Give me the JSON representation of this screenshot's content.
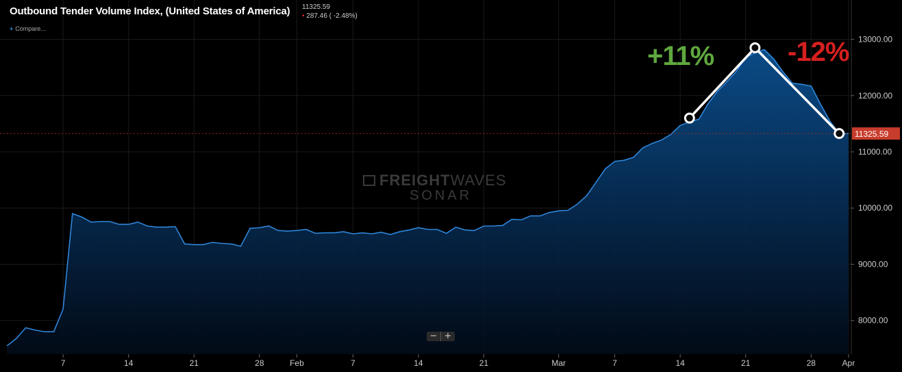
{
  "header": {
    "title": "Outbound Tender Volume Index, (United States of America)",
    "last_value": "11325.59",
    "change": "287.46 ( -2.48%)",
    "compare_label": "Compare..."
  },
  "watermark": {
    "line1_bold": "FREIGHT",
    "line1_light": "WAVES",
    "line2": "SONAR"
  },
  "zoom": {
    "minus": "−",
    "plus": "+"
  },
  "colors": {
    "line": "#2f86d9",
    "fill_top": "#0b4f8e",
    "price_tag": "#c83c2c",
    "up": "#5fa83f",
    "down": "#d61f1f"
  },
  "chart_data": {
    "type": "area",
    "title": "Outbound Tender Volume Index, (United States of America)",
    "ylim": [
      7400,
      13700
    ],
    "yticks": [
      8000,
      9000,
      10000,
      11000,
      12000,
      13000
    ],
    "ytick_labels": [
      "8000.00",
      "9000.00",
      "10000.00",
      "11000.00",
      "12000.00",
      "13000.00"
    ],
    "xticks": [
      {
        "day": 7,
        "label": "7"
      },
      {
        "day": 14,
        "label": "14"
      },
      {
        "day": 21,
        "label": "21"
      },
      {
        "day": 28,
        "label": "28"
      },
      {
        "day": 32,
        "label": "Feb"
      },
      {
        "day": 38,
        "label": "7"
      },
      {
        "day": 45,
        "label": "14"
      },
      {
        "day": 52,
        "label": "21"
      },
      {
        "day": 60,
        "label": "Mar"
      },
      {
        "day": 66,
        "label": "7"
      },
      {
        "day": 73,
        "label": "14"
      },
      {
        "day": 80,
        "label": "21"
      },
      {
        "day": 87,
        "label": "28"
      },
      {
        "day": 91,
        "label": "Apr"
      }
    ],
    "series": [
      {
        "x": [
          1,
          2,
          3,
          4,
          5,
          6,
          7,
          8,
          9,
          10,
          11,
          12,
          13,
          14,
          15,
          16,
          17,
          18,
          19,
          20,
          21,
          22,
          23,
          24,
          25,
          26,
          27,
          28,
          29,
          30,
          31,
          32,
          33,
          34,
          35,
          36,
          37,
          38,
          39,
          40,
          41,
          42,
          43,
          44,
          45,
          46,
          47,
          48,
          49,
          50,
          51,
          52,
          53,
          54,
          55,
          56,
          57,
          58,
          59,
          60,
          61,
          62,
          63,
          64,
          65,
          66,
          67,
          68,
          69,
          70,
          71,
          72,
          73,
          74,
          75,
          76,
          77,
          78,
          79,
          80,
          81,
          82,
          83,
          84,
          85,
          86,
          87,
          88,
          89,
          90,
          91
        ],
        "values": [
          7550,
          7680,
          7870,
          7830,
          7800,
          7800,
          8200,
          9900,
          9840,
          9750,
          9760,
          9760,
          9710,
          9710,
          9750,
          9680,
          9660,
          9660,
          9670,
          9360,
          9350,
          9350,
          9390,
          9370,
          9360,
          9320,
          9640,
          9650,
          9680,
          9600,
          9590,
          9600,
          9620,
          9550,
          9560,
          9560,
          9580,
          9540,
          9560,
          9540,
          9570,
          9530,
          9580,
          9610,
          9650,
          9620,
          9620,
          9550,
          9660,
          9610,
          9600,
          9680,
          9680,
          9690,
          9800,
          9790,
          9860,
          9860,
          9920,
          9950,
          9960,
          10070,
          10220,
          10460,
          10700,
          10830,
          10850,
          10900,
          11070,
          11150,
          11210,
          11310,
          11470,
          11530,
          11580,
          11860,
          12080,
          12250,
          12430,
          12680,
          12760,
          12820,
          12650,
          12420,
          12220,
          12200,
          12170,
          11850,
          11550,
          11325,
          11325
        ]
      }
    ],
    "last_value": 11325.59,
    "last_value_label": "11325.59",
    "annotation_points": [
      {
        "x": 74,
        "y": 11600
      },
      {
        "x": 81,
        "y": 12850
      },
      {
        "x": 90,
        "y": 11325
      }
    ],
    "annotations": {
      "up_label": "+11%",
      "down_label": "-12%"
    }
  }
}
